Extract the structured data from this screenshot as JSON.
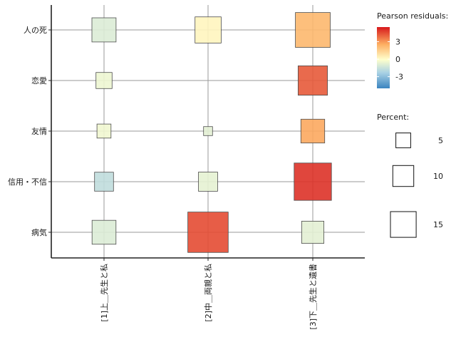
{
  "chart_data": {
    "type": "balloon",
    "title": "",
    "rows": [
      "人の死",
      "恋愛",
      "友情",
      "信用・不信",
      "病気"
    ],
    "columns": [
      "[1]上＿先生と私",
      "[2]中＿両親と私",
      "[3]下＿先生と遺書"
    ],
    "cells": [
      {
        "row": "人の死",
        "col": "[1]上＿先生と私",
        "percent": 6.5,
        "residual": -1.0
      },
      {
        "row": "人の死",
        "col": "[2]中＿両親と私",
        "percent": 7.6,
        "residual": 0.3
      },
      {
        "row": "人の死",
        "col": "[3]下＿先生と遺書",
        "percent": 13.5,
        "residual": 2.2
      },
      {
        "row": "恋愛",
        "col": "[1]上＿先生と私",
        "percent": 2.9,
        "residual": -0.5
      },
      {
        "row": "恋愛",
        "col": "[3]下＿先生と遺書",
        "percent": 9.6,
        "residual": 4.2
      },
      {
        "row": "友情",
        "col": "[1]上＿先生と私",
        "percent": 2.2,
        "residual": -0.4
      },
      {
        "row": "友情",
        "col": "[2]中＿両親と私",
        "percent": 0.9,
        "residual": -0.8
      },
      {
        "row": "友情",
        "col": "[3]下＿先生と遺書",
        "percent": 6.3,
        "residual": 2.6
      },
      {
        "row": "信用・不信",
        "col": "[1]上＿先生と私",
        "percent": 4.0,
        "residual": -1.8
      },
      {
        "row": "信用・不信",
        "col": "[2]中＿両親と私",
        "percent": 4.1,
        "residual": -0.7
      },
      {
        "row": "信用・不信",
        "col": "[3]下＿先生と遺書",
        "percent": 15.5,
        "residual": 5.0
      },
      {
        "row": "病気",
        "col": "[1]上＿先生と私",
        "percent": 6.4,
        "residual": -1.0
      },
      {
        "row": "病気",
        "col": "[2]中＿両親と私",
        "percent": 18.2,
        "residual": 4.5
      },
      {
        "row": "病気",
        "col": "[3]下＿先生と遺書",
        "percent": 5.5,
        "residual": -0.8
      }
    ],
    "legend_color": {
      "title": "Pearson residuals:",
      "ticks": [
        3,
        0,
        -3
      ],
      "tick_labels": [
        "3",
        "0",
        "-3"
      ],
      "range": [
        -5,
        5.5
      ],
      "colors": {
        "low": "#4a8ec6",
        "mid": "#ffffcc",
        "high": "#d7191c"
      }
    },
    "legend_size": {
      "title": "Percent:",
      "values": [
        5,
        10,
        15
      ],
      "labels": [
        "5",
        "10",
        "15"
      ]
    }
  }
}
